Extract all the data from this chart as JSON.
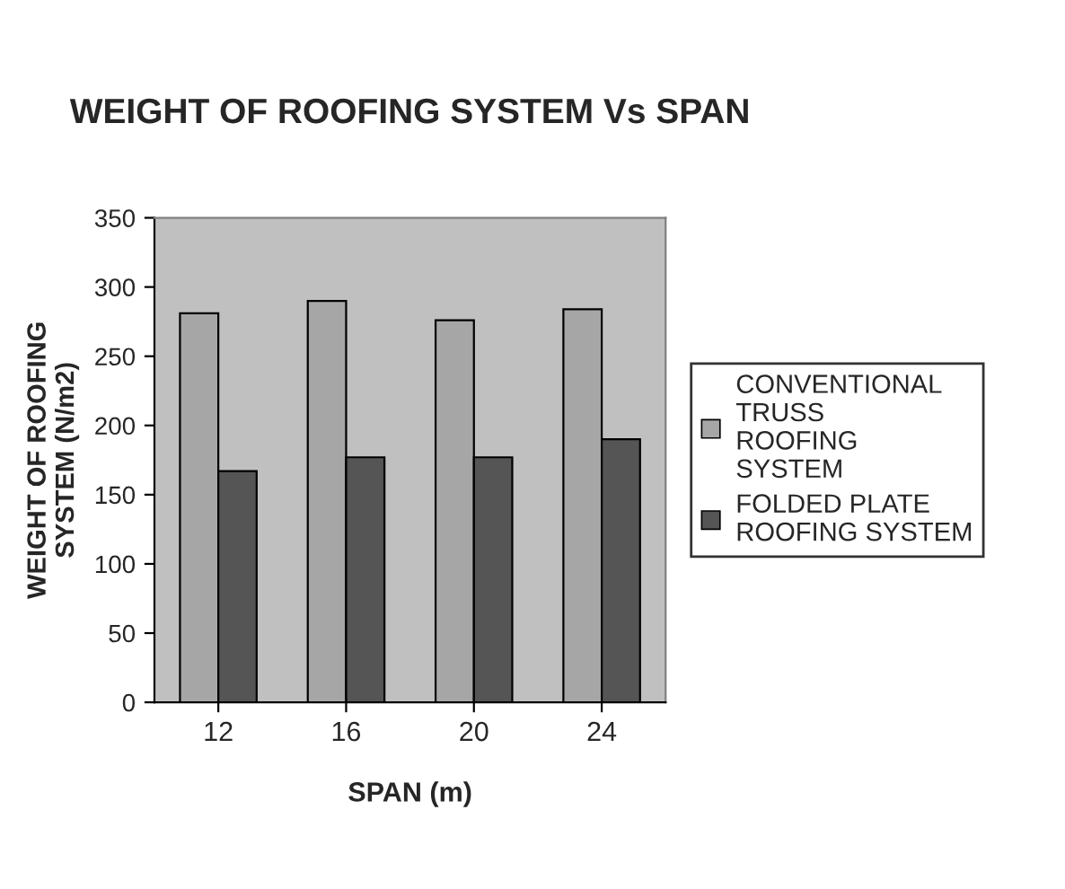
{
  "chart_data": {
    "type": "bar",
    "title": "WEIGHT OF ROOFING SYSTEM Vs SPAN",
    "xlabel": "SPAN (m)",
    "ylabel": "WEIGHT OF ROOFING\nSYSTEM (N/m2)",
    "categories": [
      "12",
      "16",
      "20",
      "24"
    ],
    "series": [
      {
        "name": "CONVENTIONAL\nTRUSS\nROOFING\nSYSTEM",
        "color": "#a6a6a6",
        "values": [
          281,
          290,
          276,
          284
        ]
      },
      {
        "name": "FOLDED PLATE\nROOFING SYSTEM",
        "color": "#555555",
        "values": [
          167,
          177,
          177,
          190
        ]
      }
    ],
    "ylim": [
      0,
      350
    ],
    "yticks": [
      0,
      50,
      100,
      150,
      200,
      250,
      300,
      350
    ],
    "grid": false,
    "legend": "right"
  }
}
